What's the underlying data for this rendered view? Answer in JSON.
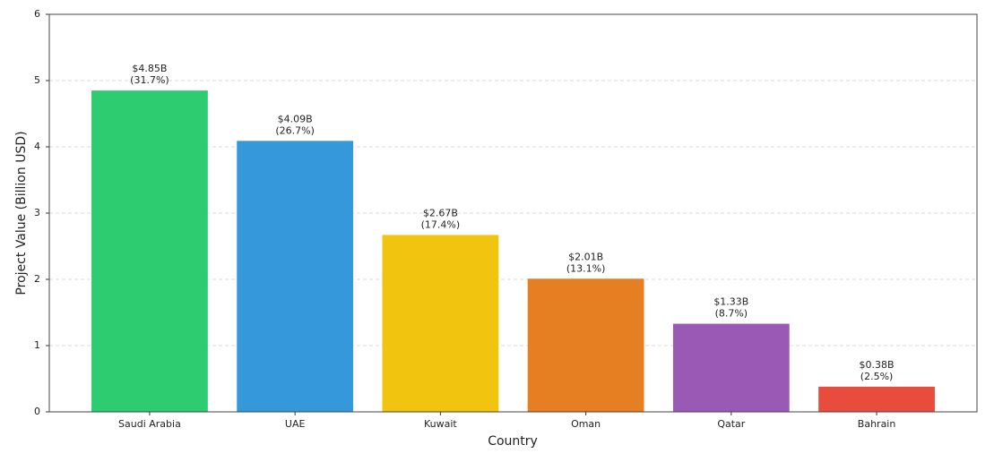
{
  "chart_data": {
    "type": "bar",
    "x_label": "Country",
    "y_label": "Project Value (Billion USD)",
    "categories": [
      "Saudi Arabia",
      "UAE",
      "Kuwait",
      "Oman",
      "Qatar",
      "Bahrain"
    ],
    "values": [
      4.85,
      4.09,
      2.67,
      2.01,
      1.33,
      0.38
    ],
    "value_labels": [
      "$4.85B",
      "$4.09B",
      "$2.67B",
      "$2.01B",
      "$1.33B",
      "$0.38B"
    ],
    "shares": [
      31.7,
      26.7,
      17.4,
      13.1,
      8.7,
      2.5
    ],
    "share_labels": [
      "(31.7%)",
      "(26.7%)",
      "(17.4%)",
      "(13.1%)",
      "(8.7%)",
      "(2.5%)"
    ],
    "colors": [
      "#2ecc71",
      "#3498db",
      "#f1c40f",
      "#e67e22",
      "#9b59b6",
      "#e74c3c"
    ],
    "ylim": [
      0,
      6
    ],
    "yticks": [
      0,
      1,
      2,
      3,
      4,
      5,
      6
    ],
    "grid": true
  }
}
